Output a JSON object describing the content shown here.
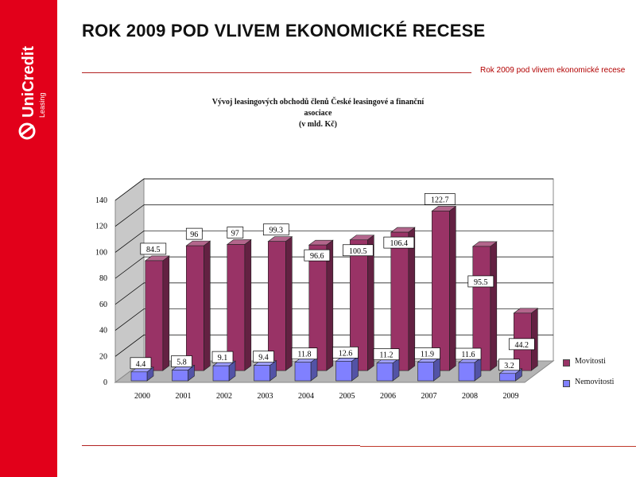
{
  "slide": {
    "title": "ROK 2009 POD VLIVEM EKONOMICKÉ RECESE",
    "header_subtitle": "Rok 2009 pod vlivem ekonomické recese",
    "brand": "UniCredit",
    "brand_sub": "Leasing"
  },
  "colors": {
    "sidebar": "#e2001a",
    "accent_line": "#b22222"
  },
  "chart_data": {
    "type": "bar",
    "title_line1": "Vývoj leasingových obchodů členů České leasingové a finanční asociace",
    "title_line2": "(v mld. Kč)",
    "categories": [
      "2000",
      "2001",
      "2002",
      "2003",
      "2004",
      "2005",
      "2006",
      "2007",
      "2008",
      "2009"
    ],
    "series": [
      {
        "name": "Movitosti",
        "color": "#993366",
        "values": [
          84.5,
          96,
          97,
          99.3,
          96.6,
          100.5,
          106.4,
          122.7,
          95.5,
          44.2
        ]
      },
      {
        "name": "Nemovitosti",
        "color": "#8080ff",
        "values": [
          4.4,
          5.8,
          9.1,
          9.4,
          11.8,
          12.6,
          11.2,
          11.9,
          11.6,
          3.2
        ]
      }
    ],
    "ylim": [
      0,
      140
    ],
    "yticks": [
      0,
      20,
      40,
      60,
      80,
      100,
      120,
      140
    ],
    "grid": true,
    "legend": "right",
    "three_d": true
  }
}
